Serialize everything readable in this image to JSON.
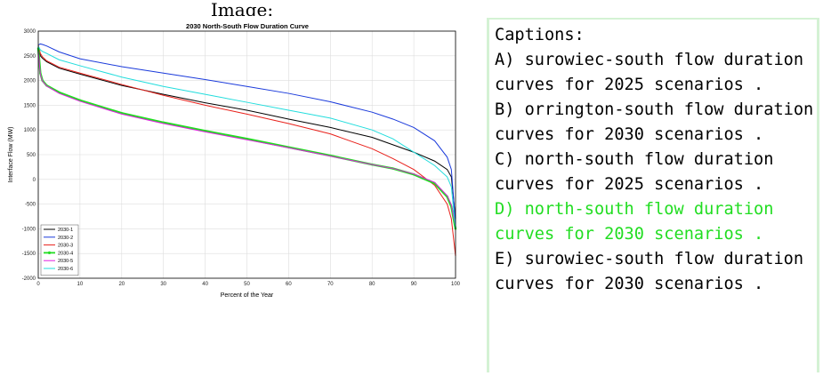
{
  "image_heading": "Image:",
  "captions": {
    "heading": "Captions:",
    "highlight_color": "#22dd22",
    "items": [
      {
        "text": "A) surowiec-south flow duration curves for 2025 scenarios .",
        "highlighted": false
      },
      {
        "text": "B) orrington-south flow duration curves for 2030 scenarios .",
        "highlighted": false
      },
      {
        "text": "C) north-south flow duration curves for 2025 scenarios .",
        "highlighted": false
      },
      {
        "text": "D) north-south flow duration curves for 2030 scenarios .",
        "highlighted": true
      },
      {
        "text": "E) surowiec-south flow duration curves for 2030 scenarios .",
        "highlighted": false
      }
    ]
  },
  "chart_data": {
    "type": "line",
    "title": "2030 North-South Flow Duration Curve",
    "xlabel": "Percent of the Year",
    "ylabel": "Interface Flow (MW)",
    "xlim": [
      0,
      100
    ],
    "ylim": [
      -2000,
      3000
    ],
    "xticks": [
      0,
      10,
      20,
      30,
      40,
      50,
      60,
      70,
      80,
      90,
      100
    ],
    "yticks": [
      -2000,
      -1500,
      -1000,
      -500,
      0,
      500,
      1000,
      1500,
      2000,
      2500,
      3000
    ],
    "grid": true,
    "legend_position": "bottom-left",
    "series": [
      {
        "name": "2030-1",
        "color": "#000000",
        "marker": false,
        "x": [
          0,
          0.5,
          1,
          2,
          5,
          10,
          20,
          30,
          40,
          50,
          60,
          70,
          80,
          85,
          90,
          95,
          98,
          99,
          100
        ],
        "y": [
          2700,
          2500,
          2450,
          2380,
          2250,
          2130,
          1900,
          1720,
          1550,
          1400,
          1220,
          1050,
          850,
          700,
          550,
          370,
          200,
          50,
          -800
        ]
      },
      {
        "name": "2030-2",
        "color": "#1a3adb",
        "marker": false,
        "x": [
          0,
          0.5,
          1,
          2,
          5,
          10,
          20,
          30,
          40,
          50,
          60,
          70,
          80,
          85,
          90,
          95,
          98,
          99,
          100
        ],
        "y": [
          2720,
          2740,
          2730,
          2700,
          2580,
          2440,
          2280,
          2150,
          2020,
          1880,
          1740,
          1570,
          1360,
          1220,
          1050,
          780,
          450,
          200,
          -900
        ]
      },
      {
        "name": "2030-3",
        "color": "#e8201a",
        "marker": false,
        "x": [
          0,
          0.5,
          1,
          2,
          5,
          10,
          20,
          30,
          40,
          50,
          60,
          70,
          80,
          85,
          90,
          95,
          98,
          99,
          100
        ],
        "y": [
          2720,
          2550,
          2480,
          2400,
          2270,
          2150,
          1920,
          1700,
          1500,
          1320,
          1130,
          920,
          620,
          420,
          200,
          -120,
          -500,
          -800,
          -1550
        ]
      },
      {
        "name": "2030-4",
        "color": "#22dd22",
        "marker": true,
        "x": [
          0,
          0.5,
          1,
          2,
          5,
          10,
          20,
          30,
          40,
          50,
          60,
          70,
          80,
          85,
          90,
          95,
          98,
          99,
          100
        ],
        "y": [
          2650,
          2150,
          2000,
          1900,
          1760,
          1600,
          1340,
          1150,
          980,
          820,
          650,
          480,
          300,
          220,
          100,
          -80,
          -350,
          -550,
          -1000
        ]
      },
      {
        "name": "2030-5",
        "color": "#e020e0",
        "marker": false,
        "x": [
          0,
          0.5,
          1,
          2,
          5,
          10,
          20,
          30,
          40,
          50,
          60,
          70,
          80,
          85,
          90,
          95,
          98,
          99,
          100
        ],
        "y": [
          2600,
          2130,
          1990,
          1890,
          1740,
          1580,
          1320,
          1130,
          960,
          800,
          640,
          470,
          300,
          220,
          110,
          -60,
          -330,
          -520,
          -950
        ]
      },
      {
        "name": "2030-6",
        "color": "#22dddd",
        "marker": false,
        "x": [
          0,
          0.5,
          1,
          2,
          5,
          10,
          20,
          30,
          40,
          50,
          60,
          70,
          80,
          85,
          90,
          95,
          98,
          99,
          100
        ],
        "y": [
          2700,
          2620,
          2590,
          2550,
          2420,
          2300,
          2070,
          1880,
          1720,
          1560,
          1400,
          1240,
          1000,
          820,
          550,
          280,
          50,
          -150,
          -1000
        ]
      }
    ]
  }
}
